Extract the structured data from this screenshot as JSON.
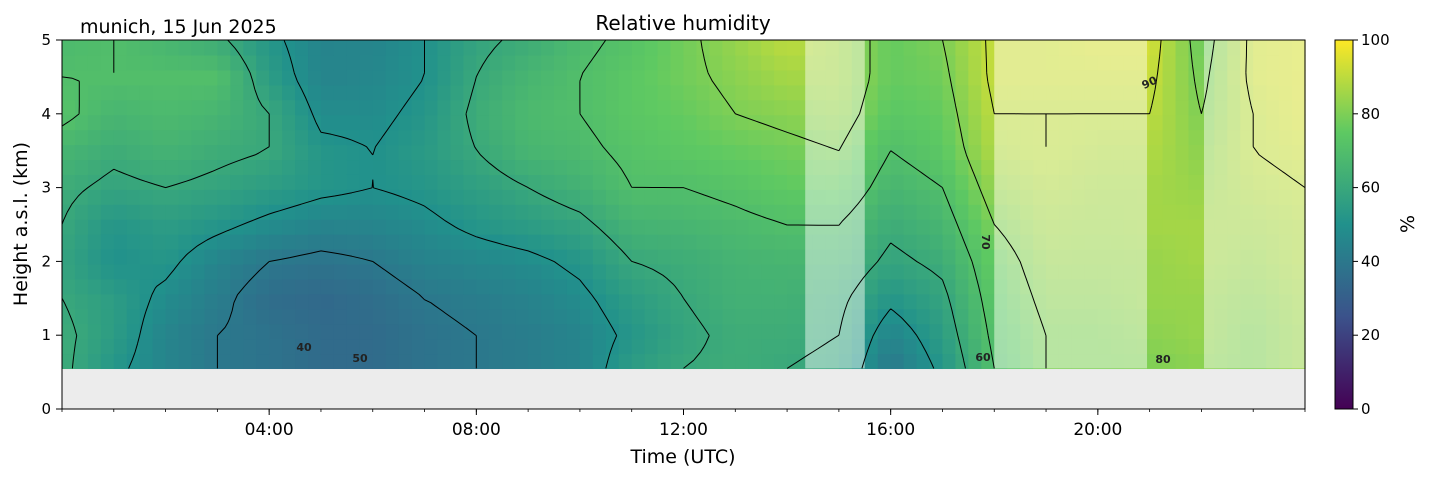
{
  "chart_data": {
    "type": "heatmap",
    "title": "Relative humidity",
    "subtitle": "munich, 15 Jun 2025",
    "xlabel": "Time (UTC)",
    "ylabel": "Height a.s.l. (km)",
    "x_ticks": [
      "04:00",
      "08:00",
      "12:00",
      "16:00",
      "20:00"
    ],
    "x_tick_hours": [
      4,
      8,
      12,
      16,
      20
    ],
    "xlim_hours": [
      0,
      24
    ],
    "y_ticks": [
      "0",
      "1",
      "2",
      "3",
      "4",
      "5"
    ],
    "ylim": [
      0,
      5
    ],
    "data_bottom_km": 0.55,
    "colorbar": {
      "label": "%",
      "range": [
        0,
        100
      ],
      "ticks": [
        "0",
        "20",
        "40",
        "60",
        "80",
        "100"
      ],
      "colormap": [
        "#440154",
        "#3b528b",
        "#21918c",
        "#5ec962",
        "#fde725"
      ]
    },
    "contour_labels": [
      "40",
      "50",
      "60",
      "70",
      "80",
      "90"
    ],
    "masked_periods_hours": [
      [
        14.35,
        15.5
      ],
      [
        18.0,
        20.95
      ],
      [
        22.05,
        24
      ]
    ],
    "columns": [
      {
        "t": 0.0,
        "rh": [
          62,
          62,
          60,
          58,
          60,
          62,
          66,
          72,
          70,
          68
        ]
      },
      {
        "t": 1.0,
        "rh": [
          52,
          55,
          55,
          50,
          52,
          58,
          62,
          66,
          70,
          70
        ]
      },
      {
        "t": 2.0,
        "rh": [
          45,
          45,
          48,
          52,
          55,
          60,
          65,
          68,
          70,
          66
        ]
      },
      {
        "t": 3.0,
        "rh": [
          40,
          40,
          42,
          45,
          52,
          58,
          62,
          66,
          70,
          62
        ]
      },
      {
        "t": 4.0,
        "rh": [
          38,
          38,
          36,
          40,
          48,
          55,
          60,
          60,
          55,
          52
        ]
      },
      {
        "t": 5.0,
        "rh": [
          35,
          35,
          34,
          38,
          45,
          52,
          52,
          48,
          45,
          45
        ]
      },
      {
        "t": 6.0,
        "rh": [
          35,
          35,
          36,
          40,
          45,
          50,
          50,
          48,
          46,
          45
        ]
      },
      {
        "t": 7.0,
        "rh": [
          38,
          38,
          40,
          44,
          48,
          52,
          54,
          52,
          50,
          50
        ]
      },
      {
        "t": 8.0,
        "rh": [
          40,
          40,
          42,
          46,
          52,
          56,
          60,
          62,
          60,
          58
        ]
      },
      {
        "t": 9.0,
        "rh": [
          42,
          42,
          44,
          48,
          55,
          60,
          66,
          68,
          66,
          62
        ]
      },
      {
        "t": 10.0,
        "rh": [
          45,
          45,
          48,
          52,
          58,
          64,
          68,
          70,
          70,
          68
        ]
      },
      {
        "t": 11.0,
        "rh": [
          55,
          52,
          55,
          60,
          65,
          70,
          72,
          74,
          74,
          72
        ]
      },
      {
        "t": 12.0,
        "rh": [
          60,
          58,
          60,
          62,
          66,
          70,
          74,
          76,
          78,
          78
        ]
      },
      {
        "t": 13.0,
        "rh": [
          62,
          62,
          64,
          65,
          68,
          72,
          76,
          80,
          82,
          84
        ]
      },
      {
        "t": 14.0,
        "rh": [
          60,
          62,
          64,
          66,
          70,
          75,
          78,
          82,
          86,
          90
        ]
      },
      {
        "t": 15.0,
        "rh": [
          58,
          60,
          62,
          66,
          70,
          76,
          80,
          84,
          86,
          86
        ]
      },
      {
        "t": 16.0,
        "rh": [
          40,
          45,
          52,
          58,
          62,
          66,
          70,
          74,
          76,
          76
        ]
      },
      {
        "t": 17.0,
        "rh": [
          52,
          55,
          58,
          62,
          66,
          70,
          74,
          76,
          78,
          80
        ]
      },
      {
        "t": 18.0,
        "rh": [
          70,
          72,
          74,
          76,
          80,
          84,
          88,
          90,
          92,
          92
        ]
      },
      {
        "t": 19.0,
        "rh": [
          80,
          80,
          82,
          84,
          86,
          88,
          90,
          90,
          92,
          92
        ]
      },
      {
        "t": 20.0,
        "rh": [
          80,
          80,
          82,
          84,
          85,
          86,
          88,
          90,
          92,
          94
        ]
      },
      {
        "t": 21.0,
        "rh": [
          80,
          82,
          84,
          84,
          86,
          86,
          88,
          90,
          92,
          94
        ]
      },
      {
        "t": 22.0,
        "rh": [
          82,
          84,
          84,
          86,
          86,
          84,
          82,
          80,
          78,
          76
        ]
      },
      {
        "t": 23.0,
        "rh": [
          80,
          80,
          82,
          84,
          86,
          88,
          90,
          90,
          92,
          92
        ]
      },
      {
        "t": 24.0,
        "rh": [
          85,
          85,
          86,
          88,
          88,
          90,
          92,
          94,
          94,
          94
        ]
      }
    ],
    "column_heights_km": [
      0.55,
      1.0,
      1.5,
      2.0,
      2.5,
      3.0,
      3.5,
      4.0,
      4.5,
      5.0
    ]
  }
}
